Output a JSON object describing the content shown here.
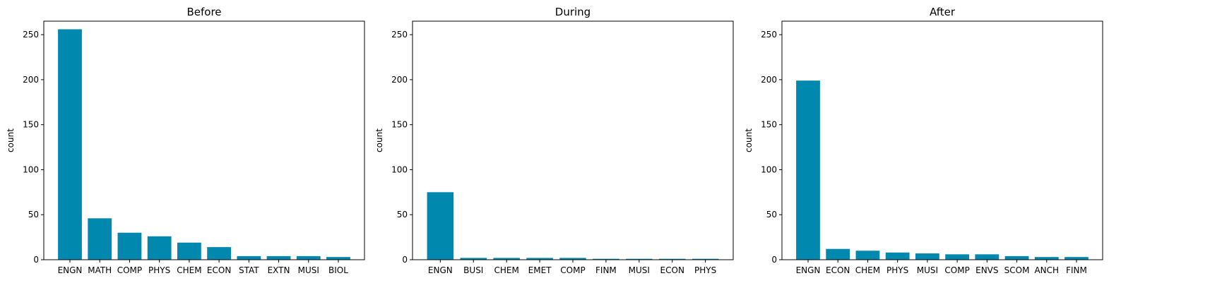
{
  "colors": {
    "bar": "#0088ae"
  },
  "chart_data": [
    {
      "type": "bar",
      "title": "Before",
      "ylabel": "count",
      "ylim": [
        0,
        265
      ],
      "yticks": [
        0,
        50,
        100,
        150,
        200,
        250
      ],
      "categories": [
        "ENGN",
        "MATH",
        "COMP",
        "PHYS",
        "CHEM",
        "ECON",
        "STAT",
        "EXTN",
        "MUSI",
        "BIOL"
      ],
      "values": [
        256,
        46,
        30,
        26,
        19,
        14,
        4,
        4,
        4,
        3
      ]
    },
    {
      "type": "bar",
      "title": "During",
      "ylabel": "count",
      "ylim": [
        0,
        265
      ],
      "yticks": [
        0,
        50,
        100,
        150,
        200,
        250
      ],
      "categories": [
        "ENGN",
        "BUSI",
        "CHEM",
        "EMET",
        "COMP",
        "FINM",
        "MUSI",
        "ECON",
        "PHYS"
      ],
      "values": [
        75,
        2,
        2,
        2,
        2,
        1,
        1,
        1,
        1
      ]
    },
    {
      "type": "bar",
      "title": "After",
      "ylabel": "count",
      "ylim": [
        0,
        265
      ],
      "yticks": [
        0,
        50,
        100,
        150,
        200,
        250
      ],
      "categories": [
        "ENGN",
        "ECON",
        "CHEM",
        "PHYS",
        "MUSI",
        "COMP",
        "ENVS",
        "SCOM",
        "ANCH",
        "FINM"
      ],
      "values": [
        199,
        12,
        10,
        8,
        7,
        6,
        6,
        4,
        3,
        3
      ]
    }
  ]
}
